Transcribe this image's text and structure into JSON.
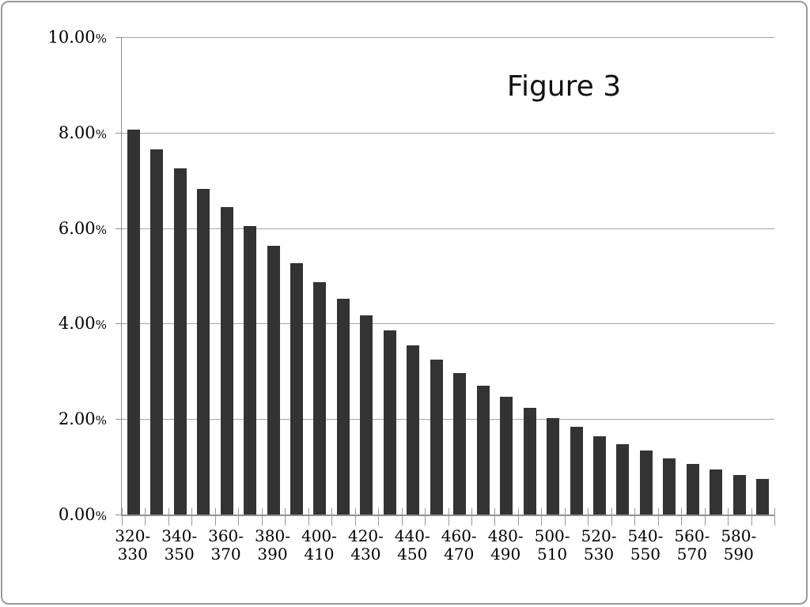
{
  "chart_data": {
    "type": "bar",
    "title": "Figure 3",
    "values": [
      8.07,
      7.65,
      7.25,
      6.82,
      6.44,
      6.04,
      5.63,
      5.26,
      4.87,
      4.52,
      4.17,
      3.85,
      3.55,
      3.25,
      2.97,
      2.7,
      2.47,
      2.24,
      2.02,
      1.83,
      1.64,
      1.48,
      1.34,
      1.18,
      1.06,
      0.95,
      0.83,
      0.75
    ],
    "num_bars": 28,
    "x_tick_labels": [
      "320-330",
      "340-350",
      "360-370",
      "380-390",
      "400-410",
      "420-430",
      "440-450",
      "460-470",
      "480-490",
      "500-510",
      "520-530",
      "540-550",
      "560-570",
      "580-590"
    ],
    "x_labels_every_n_bars": 2,
    "y_tick_labels": [
      "0.00%",
      "2.00%",
      "4.00%",
      "6.00%",
      "8.00%",
      "10.00%"
    ],
    "ylim": [
      0,
      10
    ],
    "y_major_step": 2,
    "grid": true,
    "legend": false,
    "bar_color": "#333333",
    "gridline_color": "#a6a6a6",
    "axis_color": "#8f8f8f",
    "text_color": "#000000"
  }
}
